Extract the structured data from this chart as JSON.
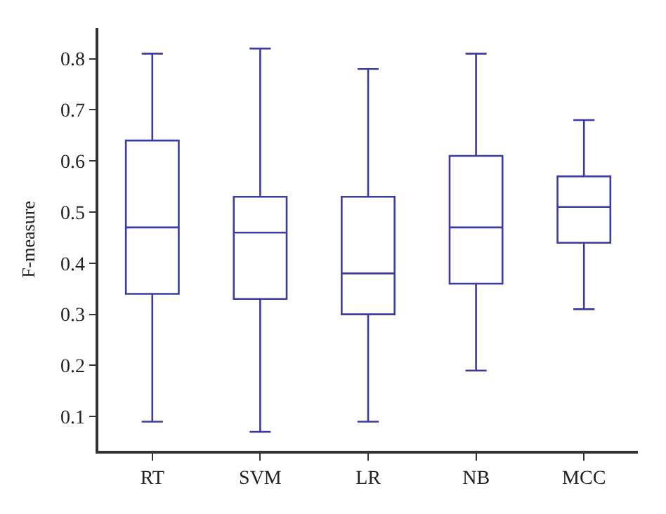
{
  "chart_data": {
    "type": "box",
    "ylabel": "F-measure",
    "categories": [
      "RT",
      "SVM",
      "LR",
      "NB",
      "MCC"
    ],
    "series": [
      {
        "color": "#3b3ba0",
        "boxes": [
          {
            "low": 0.09,
            "q1": 0.34,
            "median": 0.47,
            "q3": 0.64,
            "high": 0.81
          },
          {
            "low": 0.07,
            "q1": 0.33,
            "median": 0.46,
            "q3": 0.53,
            "high": 0.82
          },
          {
            "low": 0.09,
            "q1": 0.3,
            "median": 0.38,
            "q3": 0.53,
            "high": 0.78
          },
          {
            "low": 0.19,
            "q1": 0.36,
            "median": 0.47,
            "q3": 0.61,
            "high": 0.81
          },
          {
            "low": 0.31,
            "q1": 0.44,
            "median": 0.51,
            "q3": 0.57,
            "high": 0.68
          }
        ]
      }
    ],
    "ylim": [
      0.033,
      0.86
    ],
    "yticks": [
      0.1,
      0.2,
      0.3,
      0.4,
      0.5,
      0.6,
      0.7,
      0.8
    ]
  }
}
